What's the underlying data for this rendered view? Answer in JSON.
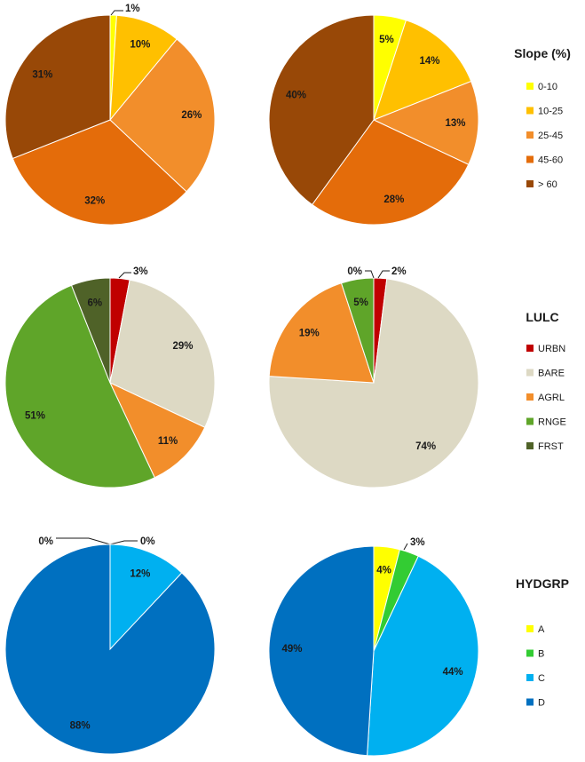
{
  "chart_data": [
    {
      "type": "pie",
      "group": "slope",
      "slices": [
        {
          "name": "0-10",
          "value": 1,
          "label": "1%",
          "color": "#FFFF00"
        },
        {
          "name": "10-25",
          "value": 10,
          "label": "10%",
          "color": "#FFC000"
        },
        {
          "name": "25-45",
          "value": 26,
          "label": "26%",
          "color": "#F28E2B"
        },
        {
          "name": "45-60",
          "value": 32,
          "label": "32%",
          "color": "#E46C0A"
        },
        {
          "name": "> 60",
          "value": 31,
          "label": "31%",
          "color": "#984807"
        }
      ]
    },
    {
      "type": "pie",
      "group": "slope",
      "slices": [
        {
          "name": "0-10",
          "value": 5,
          "label": "5%",
          "color": "#FFFF00"
        },
        {
          "name": "10-25",
          "value": 14,
          "label": "14%",
          "color": "#FFC000"
        },
        {
          "name": "25-45",
          "value": 13,
          "label": "13%",
          "color": "#F28E2B"
        },
        {
          "name": "45-60",
          "value": 28,
          "label": "28%",
          "color": "#E46C0A"
        },
        {
          "name": "> 60",
          "value": 40,
          "label": "40%",
          "color": "#984807"
        }
      ]
    },
    {
      "type": "pie",
      "group": "lulc",
      "slices": [
        {
          "name": "URBN",
          "value": 3,
          "label": "3%",
          "color": "#C00000"
        },
        {
          "name": "BARE",
          "value": 29,
          "label": "29%",
          "color": "#DDD9C4"
        },
        {
          "name": "AGRL",
          "value": 11,
          "label": "11%",
          "color": "#F28E2B"
        },
        {
          "name": "RNGE",
          "value": 51,
          "label": "51%",
          "color": "#5FA529"
        },
        {
          "name": "FRST",
          "value": 6,
          "label": "6%",
          "color": "#4F6228"
        }
      ]
    },
    {
      "type": "pie",
      "group": "lulc",
      "slices": [
        {
          "name": "URBN",
          "value": 2,
          "label": "2%",
          "color": "#C00000"
        },
        {
          "name": "BARE",
          "value": 74,
          "label": "74%",
          "color": "#DDD9C4"
        },
        {
          "name": "AGRL",
          "value": 19,
          "label": "19%",
          "color": "#F28E2B"
        },
        {
          "name": "RNGE",
          "value": 5,
          "label": "5%",
          "color": "#5FA529"
        },
        {
          "name": "FRST",
          "value": 0,
          "label": "0%",
          "color": "#4F6228"
        }
      ]
    },
    {
      "type": "pie",
      "group": "hydgrp",
      "slices": [
        {
          "name": "A",
          "value": 0,
          "label": "0%",
          "color": "#FFFF00"
        },
        {
          "name": "B",
          "value": 0,
          "label": "0%",
          "color": "#33CC33"
        },
        {
          "name": "C",
          "value": 12,
          "label": "12%",
          "color": "#00B0F0"
        },
        {
          "name": "D",
          "value": 88,
          "label": "88%",
          "color": "#0070C0"
        }
      ]
    },
    {
      "type": "pie",
      "group": "hydgrp",
      "slices": [
        {
          "name": "A",
          "value": 4,
          "label": "4%",
          "color": "#FFFF00"
        },
        {
          "name": "B",
          "value": 3,
          "label": "3%",
          "color": "#33CC33"
        },
        {
          "name": "C",
          "value": 44,
          "label": "44%",
          "color": "#00B0F0"
        },
        {
          "name": "D",
          "value": 49,
          "label": "49%",
          "color": "#0070C0"
        }
      ]
    }
  ],
  "legends": [
    {
      "title": "Slope (%)",
      "items": [
        {
          "label": "0-10",
          "color": "#FFFF00"
        },
        {
          "label": "10-25",
          "color": "#FFC000"
        },
        {
          "label": "25-45",
          "color": "#F28E2B"
        },
        {
          "label": "45-60",
          "color": "#E46C0A"
        },
        {
          "label": "> 60",
          "color": "#984807"
        }
      ]
    },
    {
      "title": "LULC",
      "items": [
        {
          "label": "URBN",
          "color": "#C00000"
        },
        {
          "label": "BARE",
          "color": "#DDD9C4"
        },
        {
          "label": "AGRL",
          "color": "#F28E2B"
        },
        {
          "label": "RNGE",
          "color": "#5FA529"
        },
        {
          "label": "FRST",
          "color": "#4F6228"
        }
      ]
    },
    {
      "title": "HYDGRP",
      "items": [
        {
          "label": "A",
          "color": "#FFFF00"
        },
        {
          "label": "B",
          "color": "#33CC33"
        },
        {
          "label": "C",
          "color": "#00B0F0"
        },
        {
          "label": "D",
          "color": "#0070C0"
        }
      ]
    }
  ]
}
